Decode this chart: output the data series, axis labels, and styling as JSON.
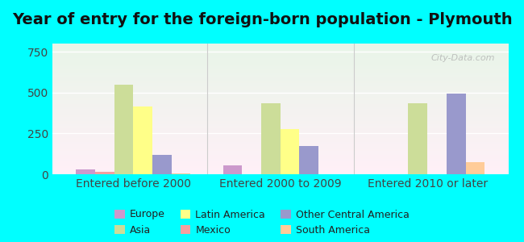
{
  "title": "Year of entry for the foreign-born population - Plymouth",
  "background_outer": "#00ffff",
  "categories": [
    "Entered before 2000",
    "Entered 2000 to 2009",
    "Entered 2010 or later"
  ],
  "series": [
    {
      "label": "Europe",
      "color": "#cc99cc",
      "values": [
        30,
        55,
        0
      ]
    },
    {
      "label": "Mexico",
      "color": "#f4a0a0",
      "values": [
        15,
        0,
        0
      ]
    },
    {
      "label": "Asia",
      "color": "#ccdd99",
      "values": [
        550,
        435,
        435
      ]
    },
    {
      "label": "Latin America",
      "color": "#ffff88",
      "values": [
        415,
        275,
        0
      ]
    },
    {
      "label": "Other Central America",
      "color": "#9999cc",
      "values": [
        120,
        175,
        495
      ]
    },
    {
      "label": "South America",
      "color": "#ffcc99",
      "values": [
        5,
        0,
        75
      ]
    }
  ],
  "ylim": [
    0,
    800
  ],
  "yticks": [
    0,
    250,
    500,
    750
  ],
  "bar_width": 0.13,
  "title_fontsize": 14,
  "tick_fontsize": 10,
  "legend_fontsize": 9,
  "watermark": "City-Data.com",
  "legend_order": [
    0,
    2,
    3,
    1,
    4,
    5
  ]
}
